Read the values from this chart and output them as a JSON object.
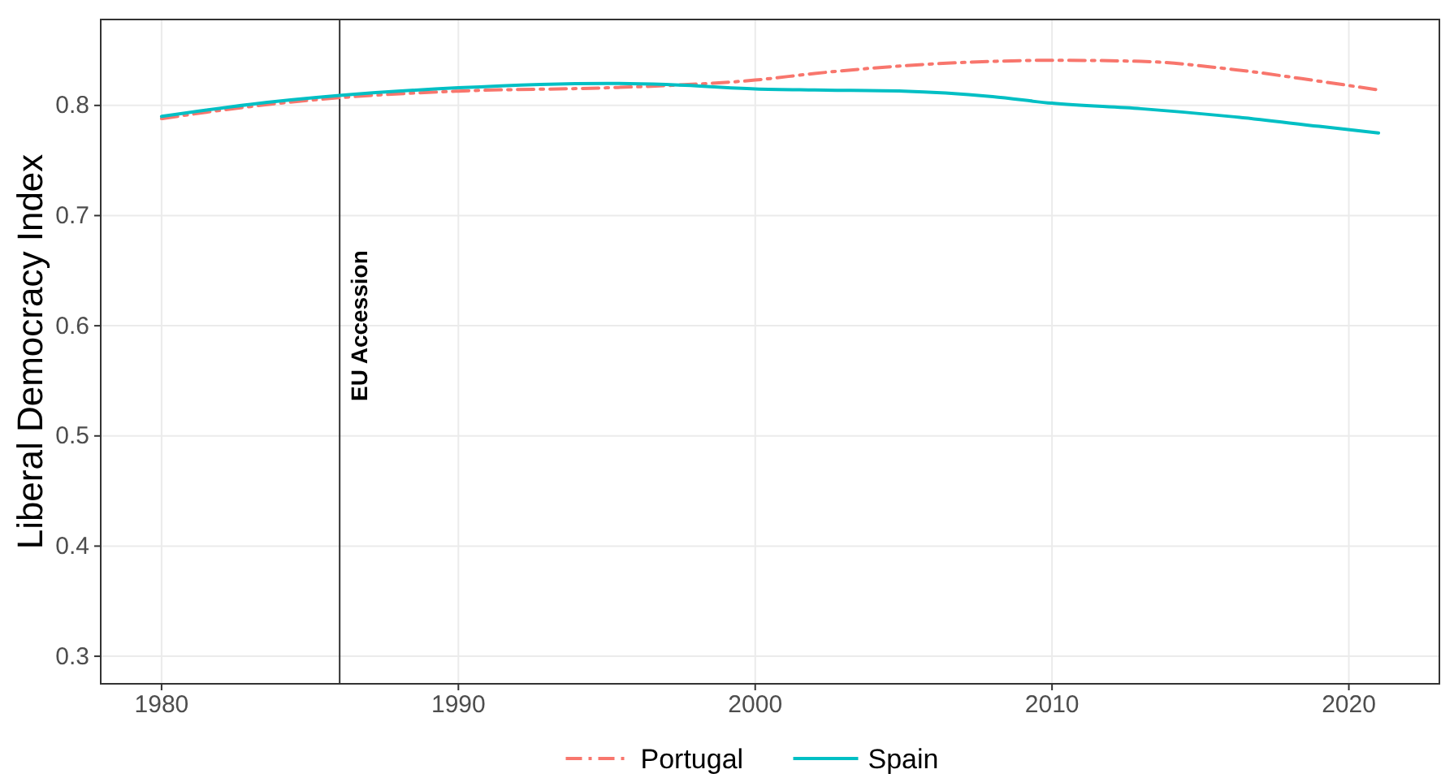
{
  "chart_data": {
    "type": "line",
    "ylabel": "Liberal Democracy Index",
    "x": [
      1980,
      1983,
      1986,
      1990,
      1995,
      1997,
      2000,
      2002,
      2005,
      2008,
      2010,
      2013,
      2016,
      2019,
      2021
    ],
    "series": [
      {
        "name": "Portugal",
        "color": "#f8766d",
        "line_style": "dashed",
        "values": [
          0.788,
          0.799,
          0.807,
          0.813,
          0.816,
          0.818,
          0.823,
          0.829,
          0.836,
          0.84,
          0.841,
          0.84,
          0.833,
          0.822,
          0.814
        ]
      },
      {
        "name": "Spain",
        "color": "#00bfc4",
        "line_style": "solid",
        "values": [
          0.79,
          0.801,
          0.809,
          0.816,
          0.82,
          0.819,
          0.815,
          0.814,
          0.813,
          0.808,
          0.802,
          0.797,
          0.79,
          0.781,
          0.775
        ]
      }
    ],
    "xlim": [
      1977.95,
      2023.05
    ],
    "xticks": [
      1980,
      1990,
      2000,
      2010,
      2020
    ],
    "ylim": [
      0.275,
      0.878
    ],
    "yticks": [
      0.3,
      0.4,
      0.5,
      0.6,
      0.7,
      0.8
    ],
    "grid": true,
    "legend": "bottom",
    "ref_lines": [
      {
        "axis": "x",
        "value": 1986,
        "label": "EU Accession",
        "color": "#333333"
      }
    ]
  }
}
